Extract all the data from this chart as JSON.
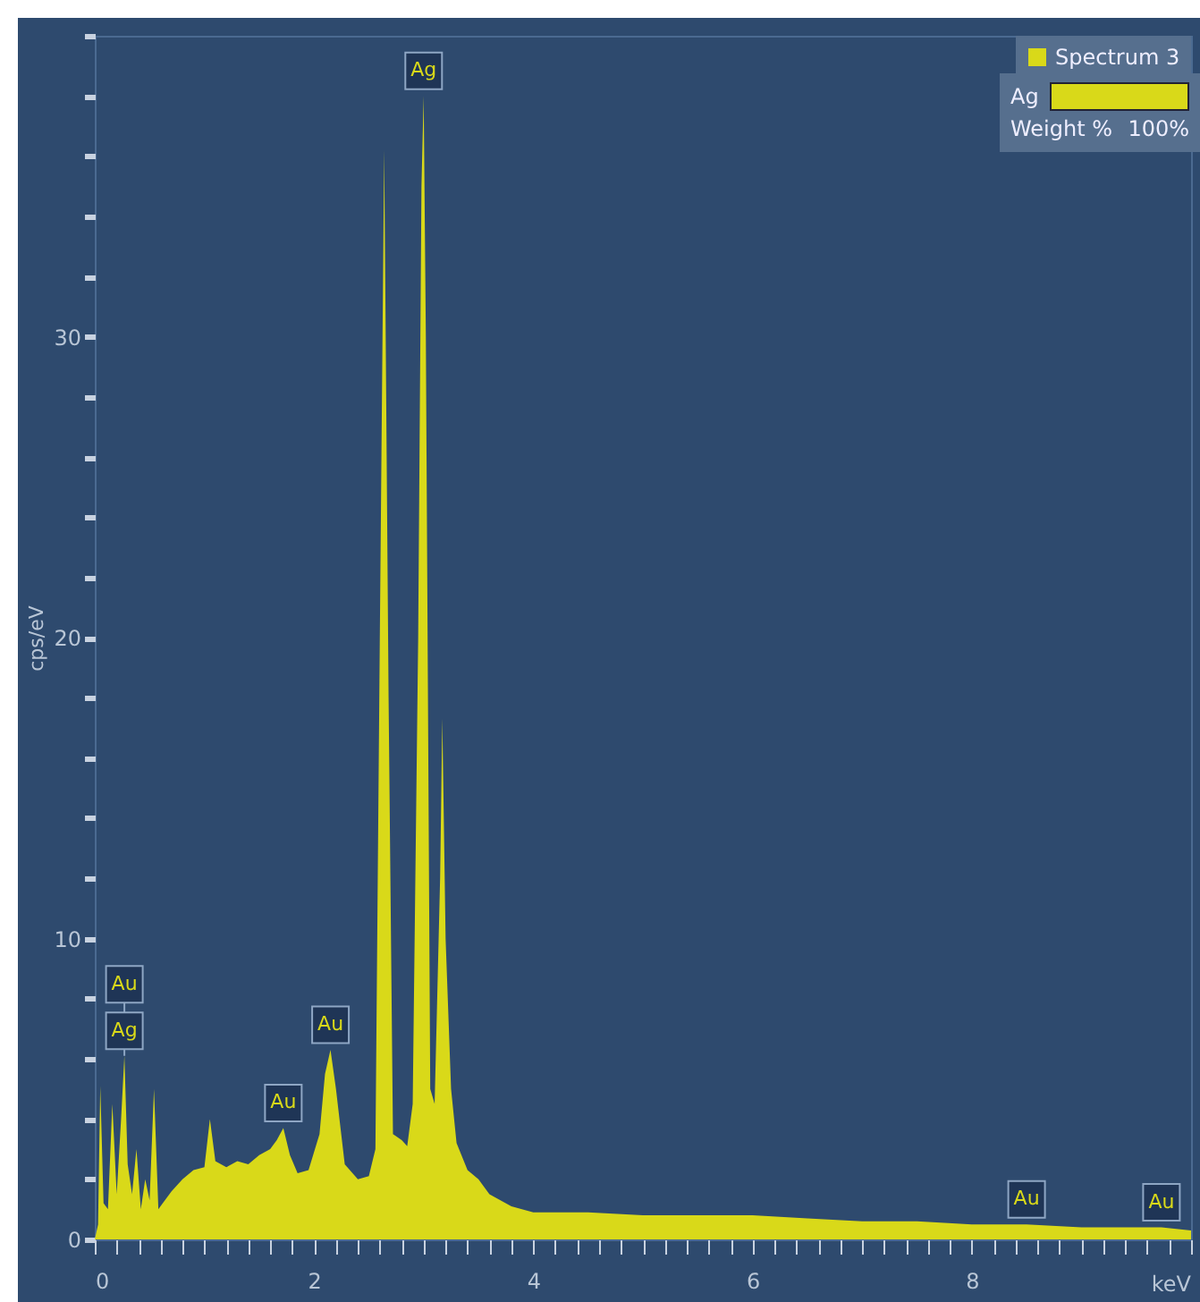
{
  "chart_data": {
    "type": "area",
    "ylabel": "cps/eV",
    "xlabel": "keV",
    "xlim": [
      0,
      10
    ],
    "ylim": [
      0,
      40
    ],
    "xticks": [
      0,
      {
        "value": 0.2,
        "label": null
      },
      {
        "value": 0.4,
        "label": null
      },
      {
        "value": 0.6,
        "label": null
      },
      {
        "value": 0.8,
        "label": null
      },
      {
        "value": 1,
        "label": null
      },
      {
        "value": 1.2,
        "label": null
      },
      {
        "value": 1.4,
        "label": null
      },
      {
        "value": 1.6,
        "label": null
      },
      {
        "value": 1.8,
        "label": null
      },
      2,
      {
        "value": 2.2,
        "label": null
      },
      {
        "value": 2.4,
        "label": null
      },
      {
        "value": 2.6,
        "label": null
      },
      {
        "value": 2.8,
        "label": null
      },
      {
        "value": 3,
        "label": null
      },
      {
        "value": 3.2,
        "label": null
      },
      {
        "value": 3.4,
        "label": null
      },
      {
        "value": 3.6,
        "label": null
      },
      {
        "value": 3.8,
        "label": null
      },
      4,
      {
        "value": 4.2,
        "label": null
      },
      {
        "value": 4.4,
        "label": null
      },
      {
        "value": 4.6,
        "label": null
      },
      {
        "value": 4.8,
        "label": null
      },
      {
        "value": 5,
        "label": null
      },
      {
        "value": 5.2,
        "label": null
      },
      {
        "value": 5.4,
        "label": null
      },
      {
        "value": 5.6,
        "label": null
      },
      {
        "value": 5.8,
        "label": null
      },
      6,
      {
        "value": 6.2,
        "label": null
      },
      {
        "value": 6.4,
        "label": null
      },
      {
        "value": 6.6,
        "label": null
      },
      {
        "value": 6.8,
        "label": null
      },
      {
        "value": 7,
        "label": null
      },
      {
        "value": 7.2,
        "label": null
      },
      {
        "value": 7.4,
        "label": null
      },
      {
        "value": 7.6,
        "label": null
      },
      {
        "value": 7.8,
        "label": null
      },
      8,
      {
        "value": 8.2,
        "label": null
      },
      {
        "value": 8.4,
        "label": null
      },
      {
        "value": 8.6,
        "label": null
      },
      {
        "value": 8.8,
        "label": null
      },
      {
        "value": 9,
        "label": null
      },
      {
        "value": 9.2,
        "label": null
      },
      {
        "value": 9.4,
        "label": null
      },
      {
        "value": 9.6,
        "label": null
      },
      {
        "value": 9.8,
        "label": null
      },
      {
        "value": 10,
        "label": null
      }
    ],
    "yticks": [
      0,
      {
        "value": 2,
        "label": null
      },
      {
        "value": 4,
        "label": null
      },
      {
        "value": 6,
        "label": null
      },
      {
        "value": 8,
        "label": null
      },
      10,
      {
        "value": 12,
        "label": null
      },
      {
        "value": 14,
        "label": null
      },
      {
        "value": 16,
        "label": null
      },
      {
        "value": 18,
        "label": null
      },
      20,
      {
        "value": 22,
        "label": null
      },
      {
        "value": 24,
        "label": null
      },
      {
        "value": 26,
        "label": null
      },
      {
        "value": 28,
        "label": null
      },
      30,
      {
        "value": 32,
        "label": null
      },
      {
        "value": 34,
        "label": null
      },
      {
        "value": 36,
        "label": null
      },
      {
        "value": 38,
        "label": null
      },
      {
        "value": 40,
        "label": null
      }
    ],
    "x": [
      0,
      0.03,
      0.05,
      0.08,
      0.12,
      0.16,
      0.2,
      0.24,
      0.27,
      0.3,
      0.34,
      0.38,
      0.42,
      0.46,
      0.5,
      0.54,
      0.58,
      0.62,
      0.7,
      0.8,
      0.9,
      1.0,
      1.05,
      1.1,
      1.2,
      1.3,
      1.4,
      1.5,
      1.6,
      1.66,
      1.72,
      1.78,
      1.85,
      1.95,
      2.05,
      2.1,
      2.15,
      2.2,
      2.28,
      2.4,
      2.5,
      2.56,
      2.6,
      2.64,
      2.68,
      2.72,
      2.8,
      2.85,
      2.9,
      2.95,
      2.98,
      3.0,
      3.02,
      3.06,
      3.1,
      3.15,
      3.17,
      3.2,
      3.25,
      3.3,
      3.4,
      3.5,
      3.6,
      3.8,
      4.0,
      4.5,
      5.0,
      5.5,
      6.0,
      6.5,
      7.0,
      7.5,
      8.0,
      8.5,
      9.0,
      9.5,
      9.73,
      10.0
    ],
    "series": [
      {
        "name": "Spectrum 3",
        "color": "#d9d919",
        "values": [
          0,
          0.5,
          5.1,
          1.2,
          1.0,
          4.5,
          1.5,
          4.0,
          6.1,
          2.5,
          1.5,
          3.0,
          1.0,
          2.0,
          1.3,
          5.0,
          1.0,
          1.2,
          1.6,
          2.0,
          2.3,
          2.4,
          4.0,
          2.6,
          2.4,
          2.6,
          2.5,
          2.8,
          3.0,
          3.3,
          3.7,
          2.8,
          2.2,
          2.3,
          3.5,
          5.5,
          6.3,
          5.0,
          2.5,
          2.0,
          2.1,
          3.0,
          20,
          36.2,
          18,
          3.5,
          3.3,
          3.1,
          4.5,
          20,
          35,
          38,
          30,
          5,
          4.5,
          12,
          17.3,
          10,
          5,
          3.2,
          2.3,
          2.0,
          1.5,
          1.1,
          0.9,
          0.9,
          0.8,
          0.8,
          0.8,
          0.7,
          0.6,
          0.6,
          0.5,
          0.5,
          0.4,
          0.4,
          0.4,
          0.3
        ]
      }
    ],
    "annotations": [
      {
        "text": "Au",
        "x": 0.27,
        "y": 6.1
      },
      {
        "text": "Ag",
        "x": 0.27,
        "y": 6.1
      },
      {
        "text": "Au",
        "x": 1.72,
        "y": 3.7
      },
      {
        "text": "Au",
        "x": 2.15,
        "y": 6.3
      },
      {
        "text": "Ag",
        "x": 3.0,
        "y": 38
      },
      {
        "text": "Au",
        "x": 8.5,
        "y": 0.5
      },
      {
        "text": "Au",
        "x": 9.73,
        "y": 0.4
      },
      "Ag",
      "Weight %",
      "100%"
    ],
    "legend": "top right",
    "grid": false
  }
}
